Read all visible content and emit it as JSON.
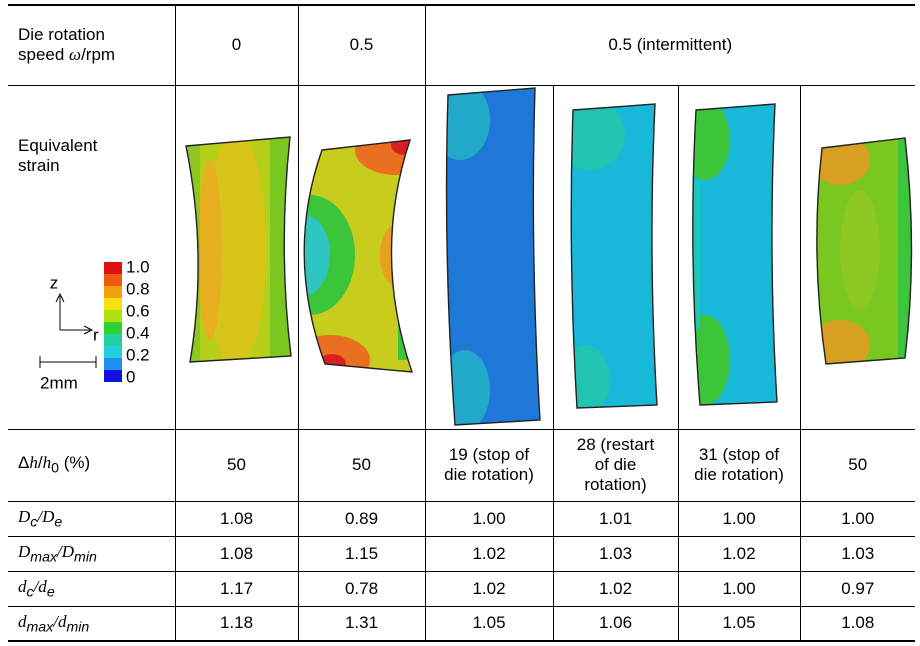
{
  "table": {
    "header": {
      "label": [
        "Die rotation",
        "speed ",
        "ω",
        "/rpm"
      ],
      "columns": [
        "0",
        "0.5",
        "0.5 (intermittent)"
      ]
    },
    "strain_row": {
      "label": [
        "Equivalent",
        "strain"
      ],
      "legend": {
        "ticks": [
          "1.0",
          "0.8",
          "0.6",
          "0.4",
          "0.2",
          "0"
        ],
        "axis_z": "z",
        "axis_r": "r",
        "scale": "2mm"
      }
    },
    "height_row": {
      "label": [
        "Δ",
        "h",
        "/",
        "h",
        "0",
        " (%)"
      ],
      "cells": [
        "50",
        "50",
        "19 (stop of die rotation)",
        "28 (restart of die rotation)",
        "31 (stop of die rotation)",
        "50"
      ]
    },
    "rows": [
      {
        "label": [
          "D",
          "c",
          "/D",
          "e"
        ],
        "cells": [
          "1.08",
          "0.89",
          "1.00",
          "1.01",
          "1.00",
          "1.00"
        ]
      },
      {
        "label": [
          "D",
          "max",
          "/D",
          "min"
        ],
        "cells": [
          "1.08",
          "1.15",
          "1.02",
          "1.03",
          "1.02",
          "1.03"
        ]
      },
      {
        "label": [
          "d",
          "c",
          "/d",
          "e"
        ],
        "cells": [
          "1.17",
          "0.78",
          "1.02",
          "1.02",
          "1.00",
          "0.97"
        ]
      },
      {
        "label": [
          "d",
          "max",
          "/d",
          "min"
        ],
        "cells": [
          "1.18",
          "1.31",
          "1.05",
          "1.06",
          "1.05",
          "1.08"
        ]
      }
    ]
  }
}
